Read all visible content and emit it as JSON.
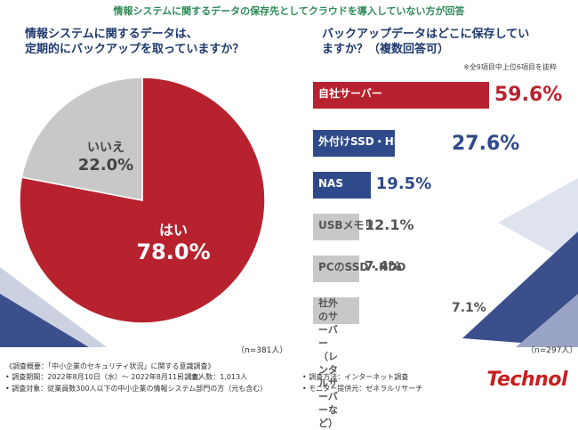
{
  "header": "情報システムに関するデータの保存先としてクラウドを導入していない方が回答",
  "left_question": "情報システムに関するデータは、\n定期的にバックアップを取っていますか？",
  "right_question": "バックアップデータはどこに保存してい\nますか？（複数回答可）",
  "right_note": "※全9項目中上位6項目を抜粋",
  "left_n": "（n=381人）",
  "right_n": "（n=297人）",
  "footer": {
    "title": "《調査概要：「中小企業のセキュリティ状況」に関する意識調査》",
    "period": "• 調査期間：2022年8月10日（水）～ 2022年8月11日（木）",
    "count": "• 調査人数：1,013人",
    "method": "• 調査方法：インターネット調査",
    "target": "• 調査対象：従業員数300人以下の中小企業の情報システム部門の方（元も含む）",
    "monitor": "• モニター提供元：ゼネラルリサーチ"
  },
  "logo": "Technol",
  "colors": {
    "red": "#b8222e",
    "navy": "#2f4a8a",
    "gray": "#c8c8c8",
    "header_green": "#2e8b57"
  },
  "chart_data": [
    {
      "type": "pie",
      "labels": [
        "はい",
        "いいえ"
      ],
      "values": [
        78.0,
        22.0
      ],
      "value_labels": [
        "78.0%",
        "22.0%"
      ],
      "colors": [
        "#b8222e",
        "#c8c8c8"
      ]
    },
    {
      "type": "bar",
      "orientation": "horizontal",
      "categories": [
        "自社サーバー",
        "外付けSSD・HDD",
        "NAS",
        "USBメモリ",
        "PCのSSD・HDD",
        "社外のサーバー\n（レンタルサーバーなど）"
      ],
      "values": [
        59.6,
        27.6,
        19.5,
        12.1,
        7.4,
        7.1
      ],
      "value_labels": [
        "59.6%",
        "27.6%",
        "19.5%",
        "12.1%",
        "7.4%",
        "7.1%"
      ],
      "colors": [
        "#b8222e",
        "#2f4a8a",
        "#2f4a8a",
        "#c8c8c8",
        "#c8c8c8",
        "#c8c8c8"
      ]
    }
  ]
}
